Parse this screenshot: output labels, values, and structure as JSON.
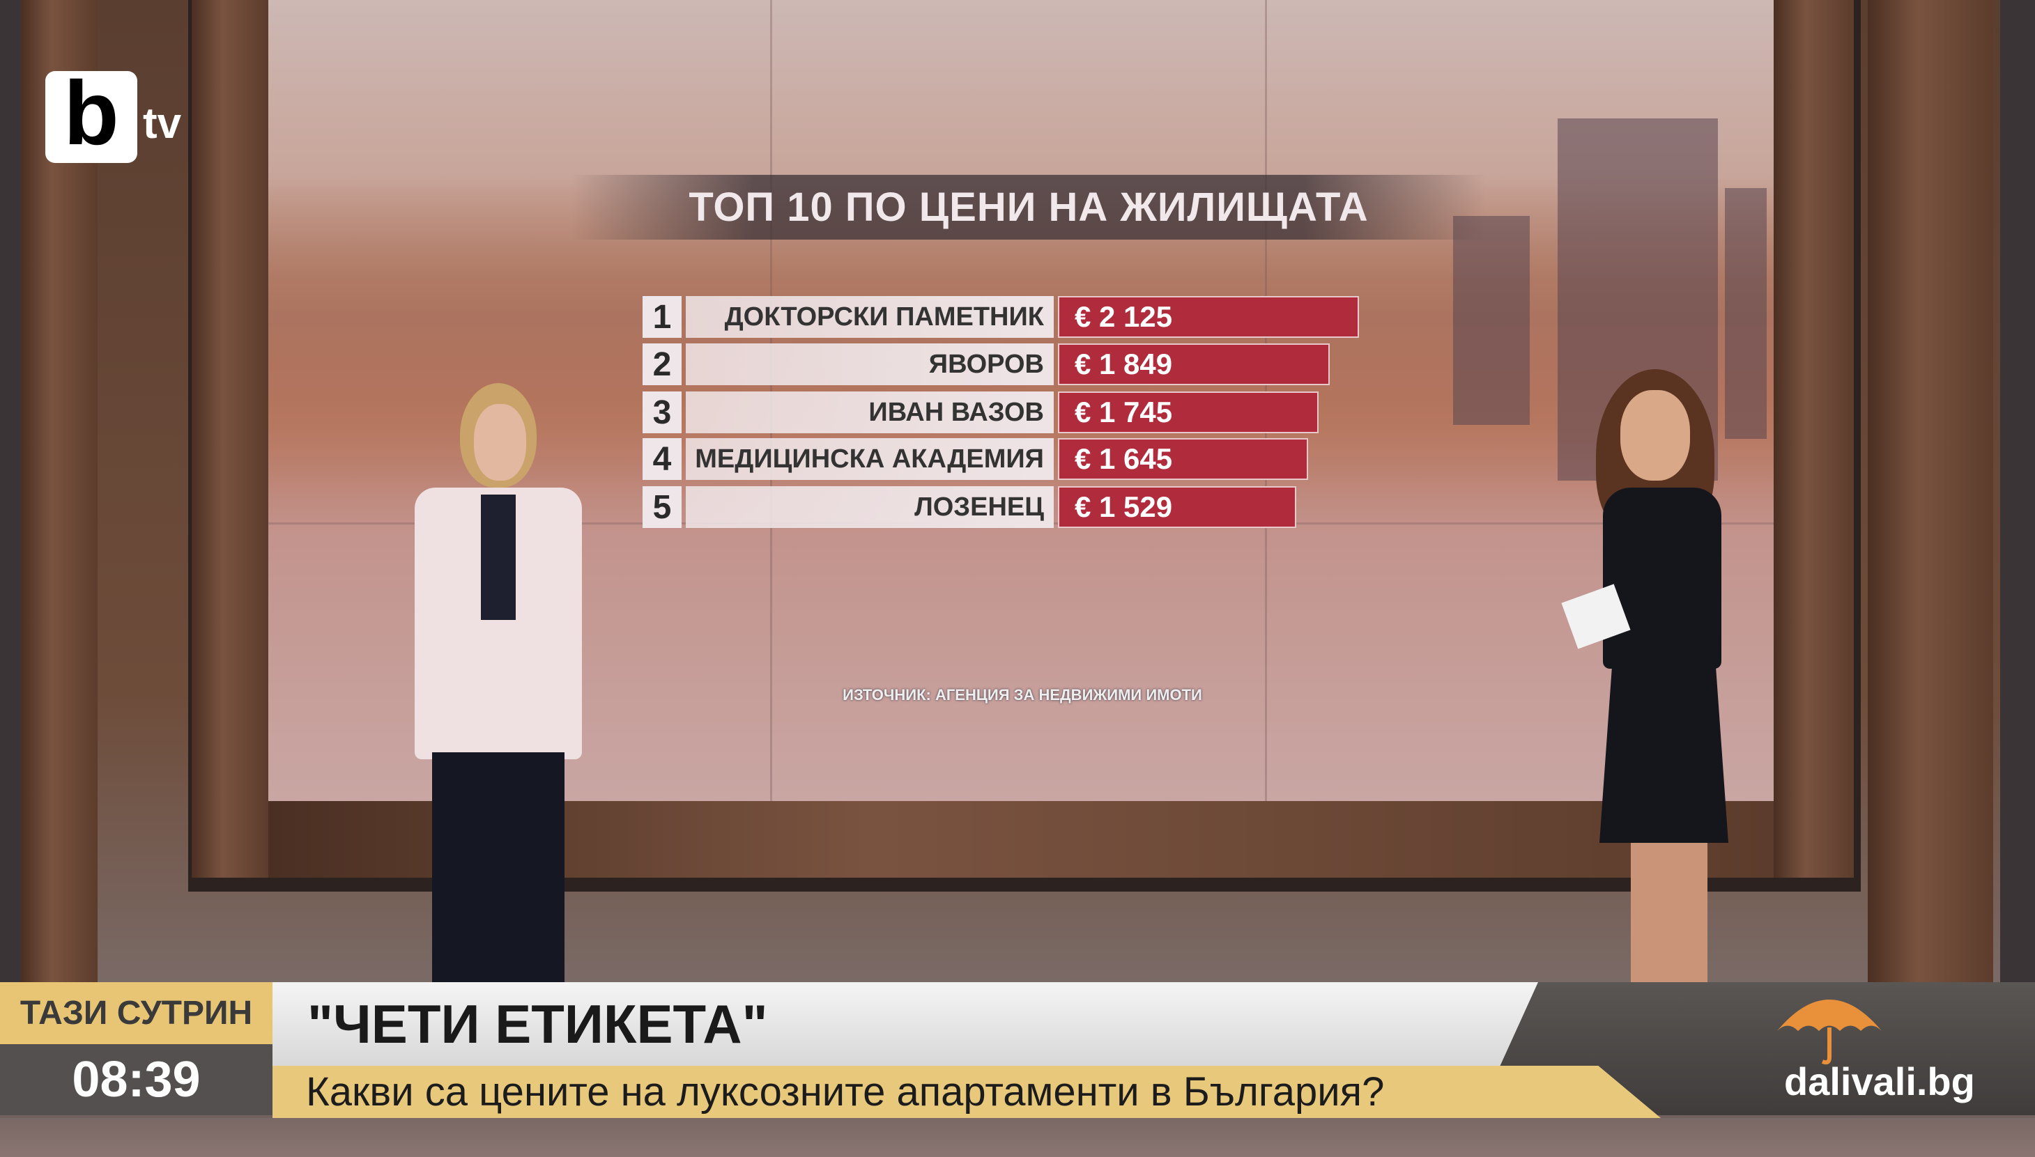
{
  "channel_logo": {
    "text": "btv"
  },
  "graphic": {
    "title": "ТОП 10 ПО ЦЕНИ НА ЖИЛИЩАТА",
    "rows": [
      {
        "rank": "1",
        "name": "ДОКТОРСКИ ПАМЕТНИК",
        "price": "€ 2 125",
        "value": 2125
      },
      {
        "rank": "2",
        "name": "ЯВОРОВ",
        "price": "€ 1 849",
        "value": 1849
      },
      {
        "rank": "3",
        "name": "ИВАН ВАЗОВ",
        "price": "€ 1 745",
        "value": 1745
      },
      {
        "rank": "4",
        "name": "МЕДИЦИНСКА АКАДЕМИЯ",
        "price": "€ 1 645",
        "value": 1645
      },
      {
        "rank": "5",
        "name": "ЛОЗЕНЕЦ",
        "price": "€ 1 529",
        "value": 1529
      }
    ],
    "source": "ИЗТОЧНИК: АГЕНЦИЯ ЗА НЕДВИЖИМИ ИМОТИ",
    "bar_color": "#b02b3c"
  },
  "lower_third": {
    "show": "ТАЗИ СУТРИН",
    "time": "08:39",
    "headline": "\"ЧЕТИ ЕТИКЕТА\"",
    "subtitle": "Какви са цените на луксозните апартаменти в България?",
    "sponsor": "dalivali.bg",
    "accent_color": "#e8c97c"
  }
}
